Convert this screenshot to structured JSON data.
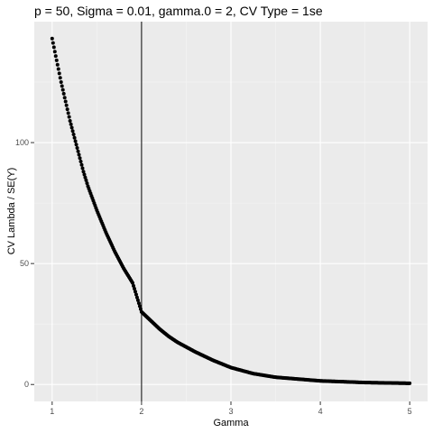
{
  "chart_data": {
    "type": "scatter",
    "title": "p = 50, Sigma = 0.01, gamma.0 = 2, CV Type = 1se",
    "xlabel": "Gamma",
    "ylabel": "CV Lambda / SE(Y)",
    "xlim": [
      0.8,
      5.2
    ],
    "ylim": [
      -7,
      150
    ],
    "x_ticks": [
      1,
      2,
      3,
      4,
      5
    ],
    "y_ticks": [
      0,
      50,
      100
    ],
    "x_tick_labels": [
      "1",
      "2",
      "3",
      "4",
      "5"
    ],
    "y_tick_labels": [
      "0",
      "50",
      "100"
    ],
    "grid": true,
    "vline_x": 2,
    "point_color": "#000000",
    "panel_background": "#ebebeb",
    "series": [
      {
        "x": [
          1.0,
          1.05,
          1.1,
          1.15,
          1.2,
          1.25,
          1.3,
          1.35,
          1.4,
          1.45,
          1.5,
          1.6,
          1.7,
          1.8,
          1.9,
          2.0,
          2.1,
          2.2,
          2.3,
          2.4,
          2.5,
          2.6,
          2.8,
          3.0,
          3.25,
          3.5,
          4.0,
          4.5,
          5.0
        ],
        "y": [
          143,
          134,
          125,
          117,
          109,
          102,
          95,
          88,
          82,
          77,
          72,
          63,
          55,
          48,
          42,
          30,
          26.5,
          23,
          20,
          17.5,
          15.5,
          13.5,
          10,
          7,
          4.5,
          3,
          1.5,
          0.8,
          0.5
        ]
      }
    ]
  }
}
